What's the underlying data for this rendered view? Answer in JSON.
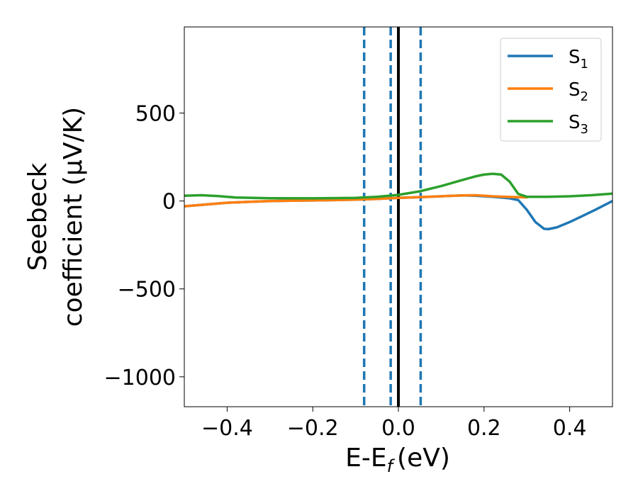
{
  "chart_data": {
    "type": "line",
    "title": "",
    "xlabel": "E-E",
    "xlabel_sub": "f",
    "xlabel_unit": "(eV)",
    "ylabel_line1": "Seebeck",
    "ylabel_line2": "coefficient  (μV/K)",
    "xlim": [
      -0.5,
      0.5
    ],
    "ylim": [
      -1170,
      990
    ],
    "xticks": [
      -0.4,
      -0.2,
      0.0,
      0.2,
      0.4
    ],
    "xtick_labels": [
      "−0.4",
      "−0.2",
      "0.0",
      "0.2",
      "0.4"
    ],
    "yticks": [
      -1000,
      -500,
      0,
      500
    ],
    "ytick_labels": [
      "−1000",
      "−500",
      "0",
      "500"
    ],
    "grid": false,
    "legend_position": "top-right",
    "vertical_lines": [
      {
        "x": -0.08,
        "style": "dashed",
        "color": "#1f77b4"
      },
      {
        "x": -0.018,
        "style": "dashed",
        "color": "#1f77b4"
      },
      {
        "x": 0.052,
        "style": "dashed",
        "color": "#1f77b4"
      },
      {
        "x": 0.0,
        "style": "solid",
        "color": "#000000"
      }
    ],
    "series": [
      {
        "name": "S",
        "sub": "1",
        "color": "#1f77b4",
        "x": [
          -0.5,
          -0.45,
          -0.4,
          -0.35,
          -0.3,
          -0.25,
          -0.2,
          -0.15,
          -0.1,
          -0.05,
          0.0,
          0.05,
          0.1,
          0.15,
          0.18,
          0.2,
          0.22,
          0.24,
          0.26,
          0.28,
          0.3,
          0.32,
          0.34,
          0.35,
          0.37,
          0.4,
          0.43,
          0.46,
          0.5
        ],
        "y": [
          -30,
          -20,
          -10,
          -5,
          0,
          2,
          3,
          5,
          8,
          12,
          18,
          22,
          27,
          32,
          30,
          27,
          24,
          20,
          15,
          5,
          -50,
          -120,
          -158,
          -160,
          -150,
          -120,
          -85,
          -50,
          0
        ]
      },
      {
        "name": "S",
        "sub": "2",
        "color": "#ff7f0e",
        "x": [
          -0.5,
          -0.45,
          -0.4,
          -0.35,
          -0.3,
          -0.25,
          -0.2,
          -0.15,
          -0.1,
          -0.05,
          0.0,
          0.05,
          0.1,
          0.15,
          0.18,
          0.2,
          0.22,
          0.25,
          0.28,
          0.3
        ],
        "y": [
          -30,
          -20,
          -10,
          -5,
          0,
          2,
          3,
          5,
          8,
          12,
          18,
          22,
          27,
          32,
          33,
          30,
          27,
          24,
          22,
          21
        ]
      },
      {
        "name": "S",
        "sub": "3",
        "color": "#2ca02c",
        "x": [
          -0.5,
          -0.46,
          -0.42,
          -0.38,
          -0.3,
          -0.2,
          -0.1,
          -0.05,
          0.0,
          0.05,
          0.1,
          0.15,
          0.18,
          0.2,
          0.22,
          0.24,
          0.26,
          0.28,
          0.3,
          0.35,
          0.4,
          0.45,
          0.5
        ],
        "y": [
          30,
          33,
          28,
          20,
          16,
          15,
          18,
          24,
          35,
          55,
          85,
          120,
          140,
          150,
          155,
          150,
          110,
          40,
          24,
          24,
          27,
          33,
          42
        ]
      }
    ]
  }
}
